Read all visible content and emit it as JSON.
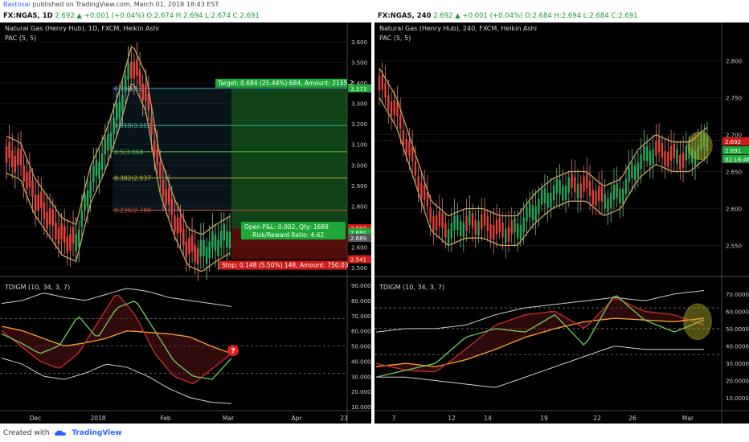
{
  "header": {
    "author": "Bastosai",
    "published": " published on TradingView.com, March 01, 2018 18:43 EST"
  },
  "left": {
    "symbol": "FX:NGAS, 1D",
    "quote": "2.692 ▲ +0.001 (+0.04%) O:2.674 H:2.694 L:2.674 C:2.691",
    "title": "Natural Gas (Henry Hub), 1D, FXCM, Heikin Ashi",
    "pac": "PAC (5, 5)",
    "osc": "TDIGM (10, 34, 3, 7)",
    "target_label": "Target: 0.684 (25.44%) 684, Amount: 2155.2",
    "stop_label": "Stop: 0.148 (5.50%) 148, Amount: 750.03",
    "pnl_label": "Open P&L: 0.002, Qty: 1689",
    "rr_label": "Risk/Reward Ratio: 4.62",
    "fib": [
      "0.786(3.3",
      "0.618(3.192",
      "0.5(3.064",
      "0.382(2.937",
      "0.236(2.780"
    ],
    "price_ticks": [
      "3.600",
      "3.500",
      "3.400",
      "3.300",
      "3.200",
      "3.100",
      "3.000",
      "2.900",
      "2.800",
      "2.700",
      "2.600",
      "2.500"
    ],
    "price_tags": [
      "3.373",
      "2.692",
      "2.691",
      "2.689",
      "2.541"
    ],
    "osc_ticks": [
      "90.0000",
      "80.0000",
      "70.0000",
      "60.0000",
      "50.0000",
      "40.0000",
      "30.0000",
      "20.0000",
      "10.0000"
    ],
    "date_ticks": [
      "Dec",
      "2018",
      "Feb",
      "Mar",
      "Apr",
      "23"
    ],
    "marker": "?"
  },
  "right": {
    "symbol": "FX:NGAS, 240",
    "quote": "2.692 ▲ +0.001 (+0.04%) O:2.684 H:2.694 L:2.684 C:2.691",
    "title": "Natural Gas (Henry Hub), 240, FXCM, Heikin Ashi",
    "pac": "PAC (5, 5)",
    "osc": "TDIGM (10, 34, 3, 7)",
    "price_ticks": [
      "2.800",
      "2.750",
      "2.700",
      "2.650",
      "2.600",
      "2.550"
    ],
    "price_tags": [
      "2.692",
      "2.691",
      "02:16:46"
    ],
    "osc_ticks": [
      "70.0000",
      "60.0000",
      "50.0000",
      "40.0000",
      "30.0000",
      "20.0000",
      "10.0000"
    ],
    "date_ticks": [
      "7",
      "12",
      "14",
      "19",
      "22",
      "26",
      "Mar"
    ]
  },
  "footer": {
    "created": "Created with",
    "brand": "TradingView"
  },
  "colors": {
    "bull": "#26a65b",
    "bear": "#e0433b",
    "pac": "#c9a15a",
    "target": "#1ea838",
    "stop": "#d11a1a"
  },
  "chart_data": [
    {
      "type": "line",
      "title": "Natural Gas (Henry Hub), 1D, FXCM, Heikin Ashi",
      "series": [
        {
          "name": "PAC (5, 5)",
          "values": [
            3.05,
            3.02,
            2.85,
            2.75,
            2.65,
            2.62,
            2.9,
            3.05,
            3.25,
            3.5,
            3.35,
            2.95,
            2.75,
            2.6,
            2.57,
            2.62,
            2.66
          ]
        }
      ],
      "ylim": [
        2.45,
        3.65
      ]
    },
    {
      "type": "line",
      "title": "Natural Gas (Henry Hub), 240, FXCM, Heikin Ashi",
      "series": [
        {
          "name": "PAC (5, 5)",
          "values": [
            2.77,
            2.73,
            2.66,
            2.59,
            2.57,
            2.58,
            2.58,
            2.57,
            2.57,
            2.6,
            2.62,
            2.63,
            2.63,
            2.61,
            2.62,
            2.66,
            2.68,
            2.67,
            2.67,
            2.69
          ]
        }
      ],
      "ylim": [
        2.52,
        2.83
      ]
    }
  ]
}
